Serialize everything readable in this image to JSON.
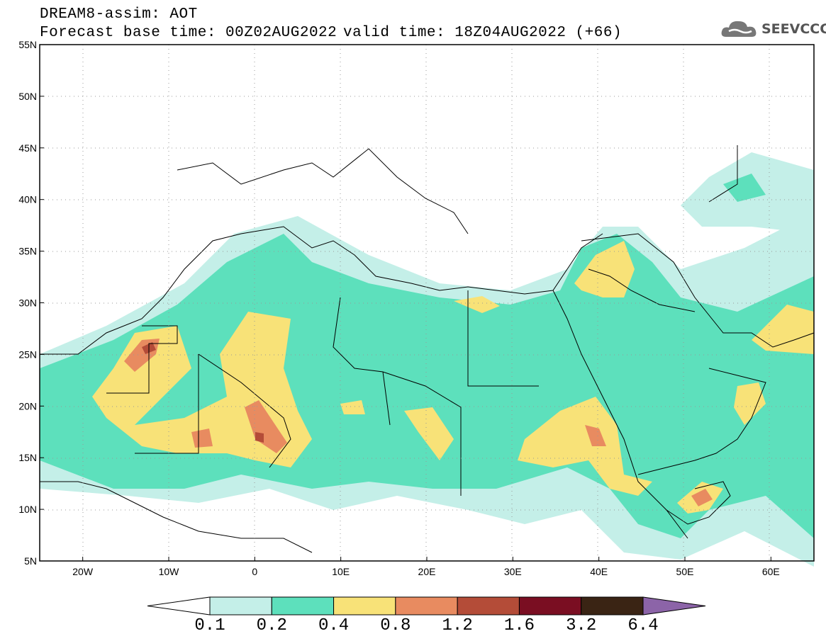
{
  "header": {
    "title": "DREAM8-assim: AOT",
    "base_time": "Forecast base time: 00Z02AUG2022",
    "valid_time": "valid time: 18Z04AUG2022 (+66)",
    "logo_text": "SEEVCCC"
  },
  "map": {
    "lat_labels": [
      "55N",
      "50N",
      "45N",
      "40N",
      "35N",
      "30N",
      "25N",
      "20N",
      "15N",
      "10N",
      "5N"
    ],
    "lon_labels": [
      "20W",
      "10W",
      "0",
      "10E",
      "20E",
      "30E",
      "40E",
      "50E",
      "60E"
    ],
    "lon_range": [
      -25,
      65
    ],
    "lat_range": [
      5,
      55
    ]
  },
  "colorbar": {
    "levels": [
      "0.1",
      "0.2",
      "0.4",
      "0.8",
      "1.2",
      "1.6",
      "3.2",
      "6.4"
    ],
    "colors": [
      "#ffffff",
      "#c4efe8",
      "#5de0bc",
      "#f8e278",
      "#e88b60",
      "#b44c38",
      "#7a0e22",
      "#3a2414",
      "#8c64a8"
    ]
  }
}
